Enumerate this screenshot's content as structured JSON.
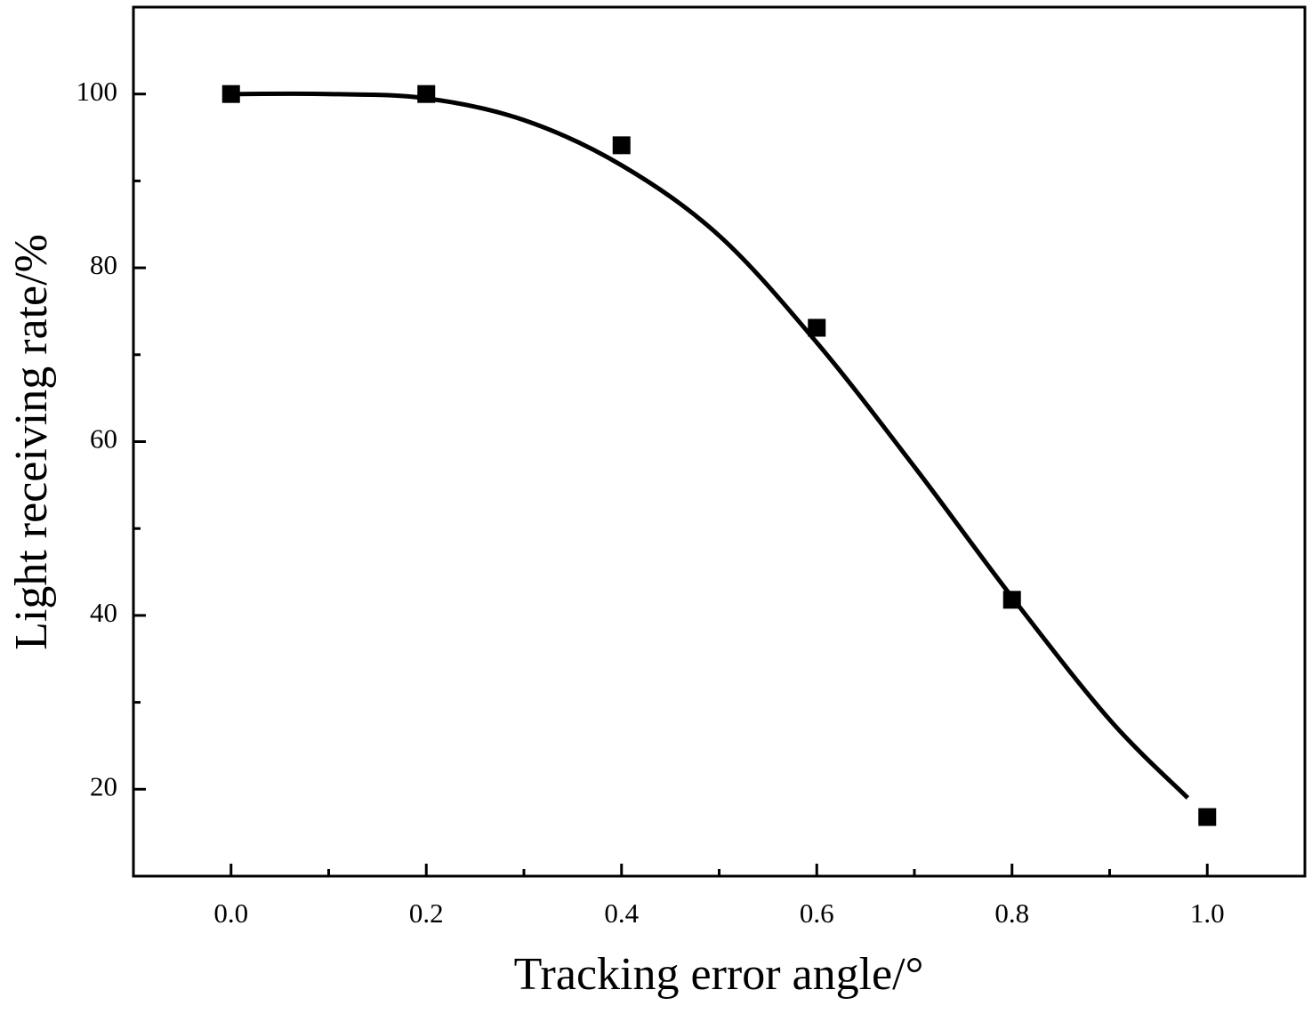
{
  "chart_data": {
    "type": "scatter",
    "xlabel": "Tracking error angle/°",
    "ylabel": "Light receiving rate/%",
    "x": [
      0,
      0.2,
      0.4,
      0.6,
      0.8,
      1.0
    ],
    "values": [
      100,
      100,
      94.1,
      73.1,
      41.8,
      16.8
    ],
    "color": "#000000",
    "fit": {
      "x": [
        0,
        0.1,
        0.2,
        0.3,
        0.4,
        0.5,
        0.6,
        0.7,
        0.8,
        0.9,
        0.98
      ],
      "values": [
        100,
        100,
        99.5,
        97,
        91.8,
        83.7,
        71.4,
        57.1,
        42.1,
        28,
        19
      ]
    },
    "xlim": [
      -0.1,
      1.1
    ],
    "ylim": [
      10,
      110
    ],
    "xticks": [
      {
        "value": 0,
        "label": "0.0"
      },
      0.2,
      0.4,
      0.6,
      0.8,
      {
        "value": 1,
        "label": "1.0"
      }
    ],
    "xminorticks": [
      0.1,
      0.3,
      0.5,
      0.7,
      0.9
    ],
    "yticks": [
      20,
      40,
      60,
      80,
      100
    ],
    "yminorticks": [
      30,
      50,
      70,
      90
    ],
    "grid": false
  }
}
